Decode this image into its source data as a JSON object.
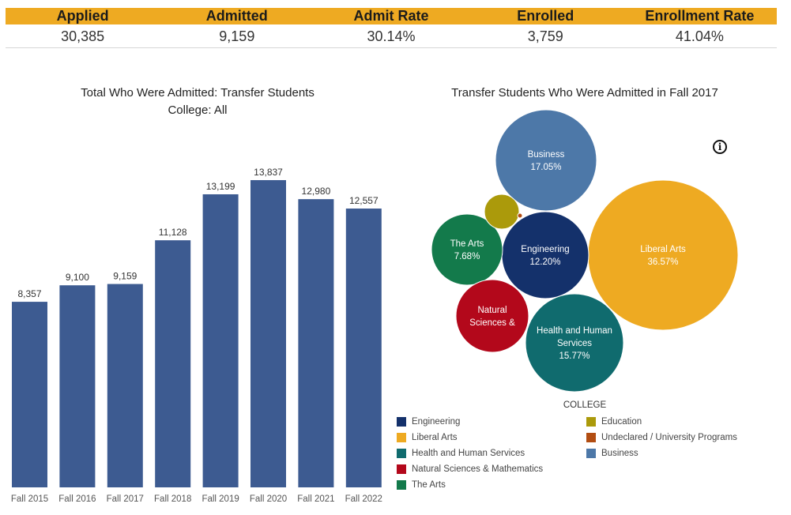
{
  "kpis": {
    "headers": [
      "Applied",
      "Admitted",
      "Admit Rate",
      "Enrolled",
      "Enrollment Rate"
    ],
    "values": [
      "30,385",
      "9,159",
      "30.14%",
      "3,759",
      "41.04%"
    ],
    "header_color": "#eeaa22"
  },
  "bar_chart": {
    "title_line1": "Total Who Were Admitted: Transfer Students",
    "title_line2": "College: All"
  },
  "bubble_chart": {
    "title": "Transfer Students Who Were Admitted  in Fall 2017"
  },
  "legend": {
    "title": "COLLEGE",
    "items": [
      {
        "label": "Engineering",
        "color": "#14316b"
      },
      {
        "label": "Education",
        "color": "#ab9a0b"
      },
      {
        "label": "Liberal Arts",
        "color": "#eeaa22"
      },
      {
        "label": "Undeclared / University Programs",
        "color": "#b24d12"
      },
      {
        "label": "Health and Human Services",
        "color": "#106b6e"
      },
      {
        "label": "Business",
        "color": "#4d78a8"
      },
      {
        "label": "Natural Sciences & Mathematics",
        "color": "#b3081b"
      },
      {
        "label": "The Arts",
        "color": "#137a4b"
      }
    ]
  },
  "info_icon": {
    "name": "info-icon",
    "glyph": "i"
  },
  "chart_data": [
    {
      "type": "bar",
      "title": "Total Who Were Admitted: Transfer Students College: All",
      "categories": [
        "Fall 2015",
        "Fall 2016",
        "Fall 2017",
        "Fall 2018",
        "Fall 2019",
        "Fall 2020",
        "Fall 2021",
        "Fall 2022"
      ],
      "values": [
        8357,
        9100,
        9159,
        11128,
        13199,
        13837,
        12980,
        12557
      ],
      "labels": [
        "8,357",
        "9,100",
        "9,159",
        "11,128",
        "13,199",
        "13,837",
        "12,980",
        "12,557"
      ],
      "color": "#3d5b91",
      "ylim": [
        0,
        16400
      ],
      "grid": false,
      "xlabel": "",
      "ylabel": ""
    },
    {
      "type": "bubble",
      "title": "Transfer Students Who Were Admitted  in Fall 2017",
      "series": [
        {
          "category": "Liberal Arts",
          "value": 36.57,
          "label_lines": [
            "Liberal Arts",
            "36.57%"
          ],
          "color": "#eeaa22"
        },
        {
          "category": "Business",
          "value": 17.05,
          "label_lines": [
            "Business",
            "17.05%"
          ],
          "color": "#4d78a8"
        },
        {
          "category": "Health and Human Services",
          "value": 15.77,
          "label_lines": [
            "Health and Human",
            "Services",
            "15.77%"
          ],
          "color": "#106b6e"
        },
        {
          "category": "Engineering",
          "value": 12.2,
          "label_lines": [
            "Engineering",
            "12.20%"
          ],
          "color": "#14316b"
        },
        {
          "category": "The Arts",
          "value": 7.68,
          "label_lines": [
            "The Arts",
            "7.68%"
          ],
          "color": "#137a4b"
        },
        {
          "category": "Natural Sciences & Mathematics",
          "value": null,
          "label_lines": [
            "Natural",
            "Sciences &"
          ],
          "color": "#b3081b"
        },
        {
          "category": "Education",
          "value": null,
          "label_lines": [],
          "color": "#ab9a0b"
        },
        {
          "category": "Undeclared / University Programs",
          "value": null,
          "label_lines": [],
          "color": "#b24d12"
        }
      ],
      "legend_position": "bottom"
    }
  ]
}
